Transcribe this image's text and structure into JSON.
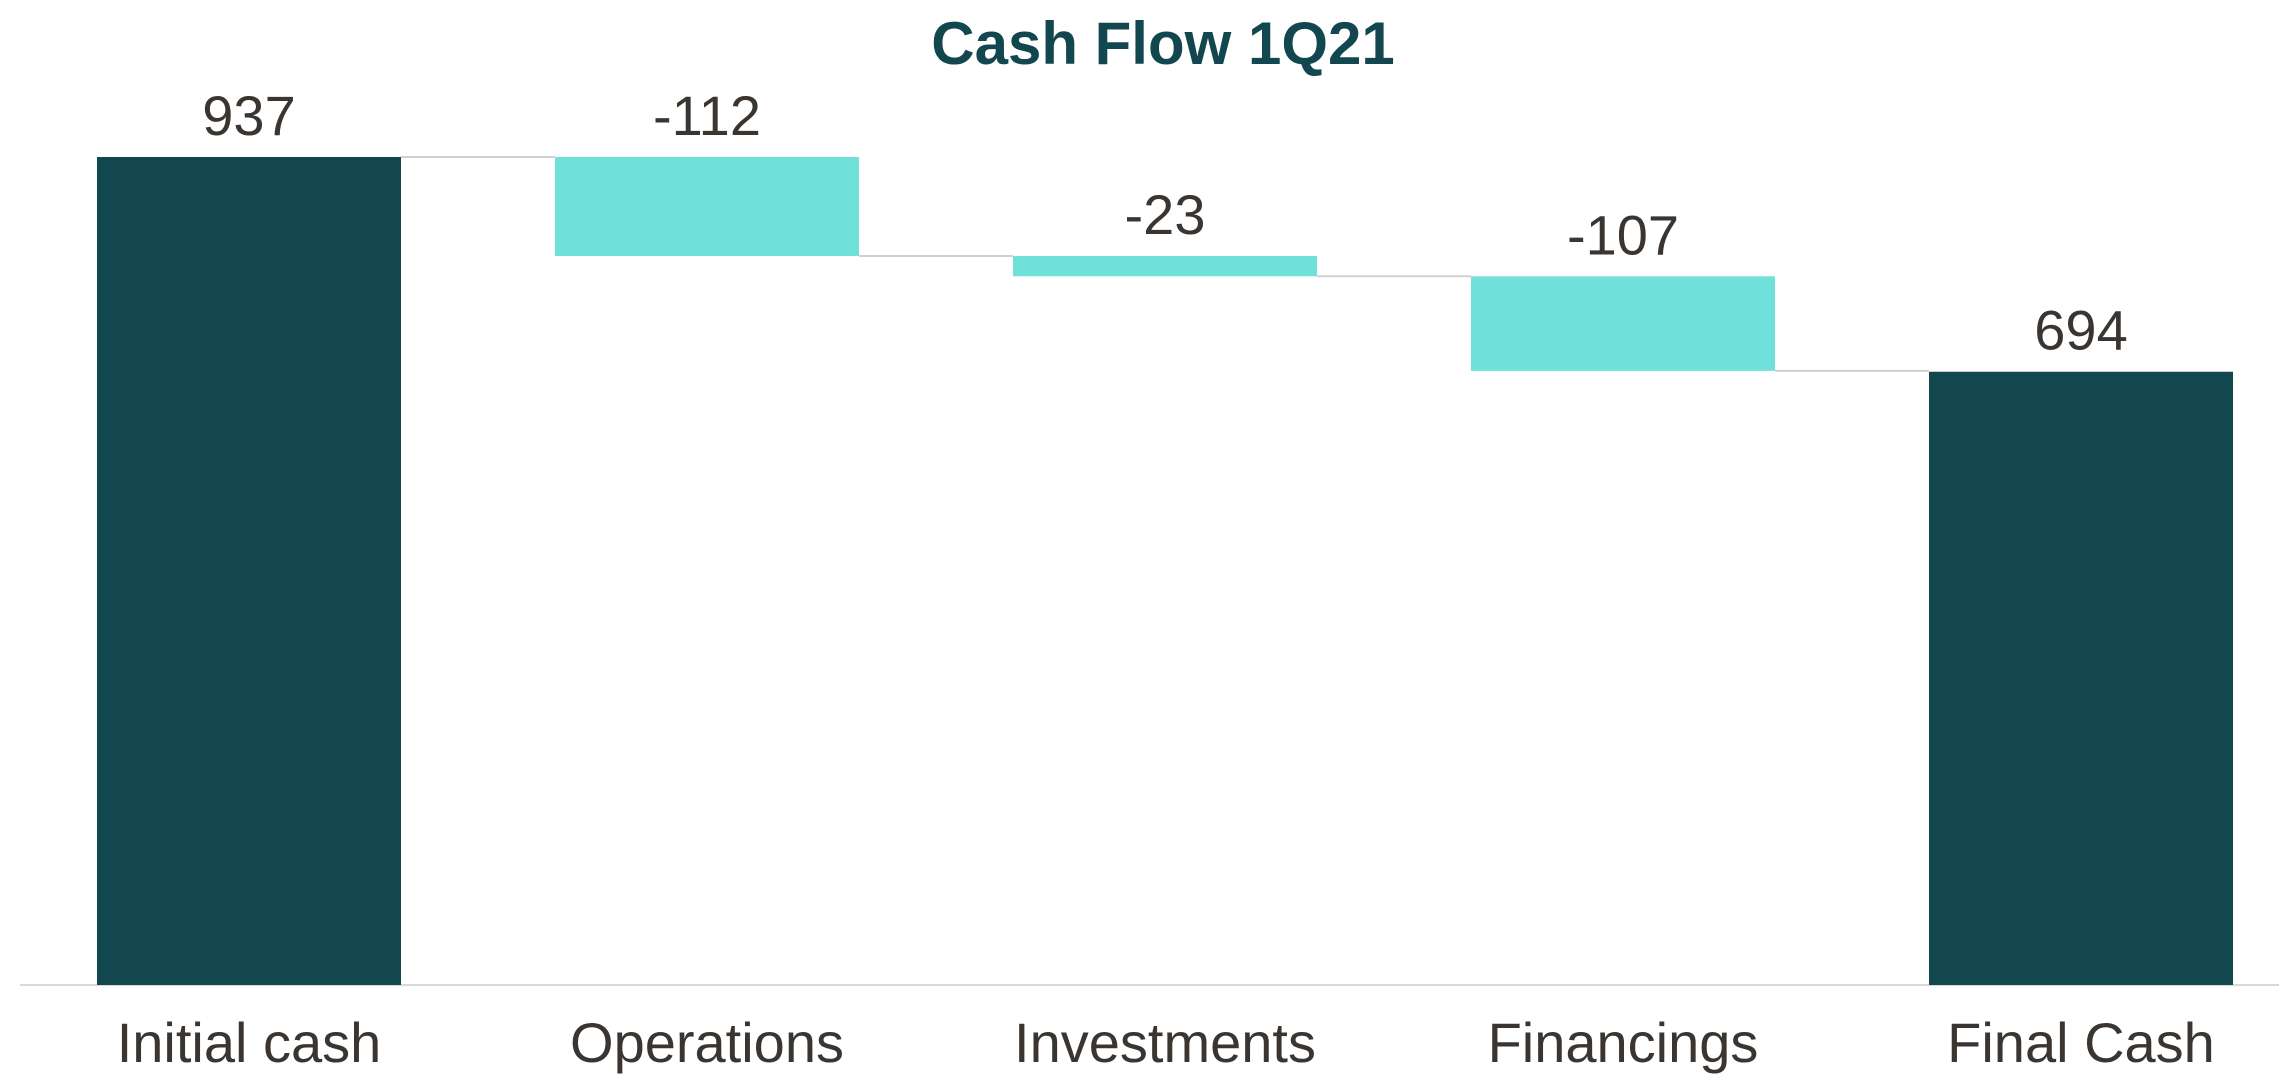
{
  "chart_data": {
    "type": "waterfall",
    "title": "Cash Flow 1Q21",
    "categories": [
      "Initial cash",
      "Operations",
      "Investments",
      "Financings",
      "Final Cash"
    ],
    "values": [
      937,
      -112,
      -23,
      -107,
      694
    ],
    "totals": [
      true,
      false,
      false,
      false,
      true
    ],
    "total_color": "#12474f",
    "change_color": "#6fe0da"
  }
}
